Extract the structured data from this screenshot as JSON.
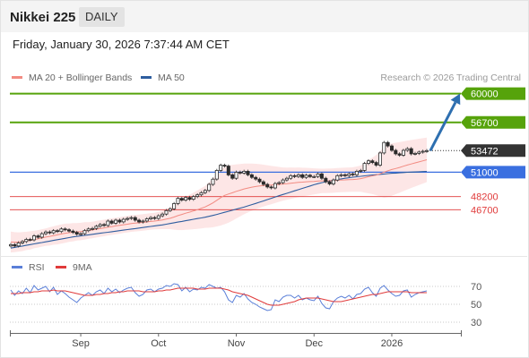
{
  "header": {
    "title": "Nikkei 225",
    "period": "DAILY"
  },
  "timestamp": "Friday, January 30, 2026 7:37:44 AM CET",
  "colors": {
    "ma20": "#f28b82",
    "ma50": "#2e5d9f",
    "band_fill": "#fde6e6",
    "target_green": "#56a30b",
    "pivot_blue": "#3a6fe0",
    "support_red": "#e03a3a",
    "price_tag": "#333333",
    "rsi": "#5a7fd8",
    "rsi_ma": "#e03a3a",
    "arrow": "#2e6fb0"
  },
  "chart_data": [
    {
      "type": "candlestick",
      "legend": [
        {
          "label": "MA 20 + Bollinger Bands",
          "color": "#f28b82"
        },
        {
          "label": "MA 50",
          "color": "#2e5d9f"
        }
      ],
      "watermark": "Research © 2026 Trading Central",
      "ylim": [
        41500,
        61500
      ],
      "x_ticks": [
        {
          "label": "Sep",
          "index": 18
        },
        {
          "label": "Oct",
          "index": 38
        },
        {
          "label": "Nov",
          "index": 58
        },
        {
          "label": "Dec",
          "index": 78
        },
        {
          "label": "2026",
          "index": 98
        }
      ],
      "levels": [
        {
          "value": 60000,
          "label": "60000",
          "kind": "target"
        },
        {
          "value": 56700,
          "label": "56700",
          "kind": "target"
        },
        {
          "value": 53472,
          "label": "53472",
          "kind": "last"
        },
        {
          "value": 51000,
          "label": "51000",
          "kind": "pivot"
        },
        {
          "value": 48200,
          "label": "48200",
          "kind": "support"
        },
        {
          "value": 46700,
          "label": "46700",
          "kind": "support"
        }
      ],
      "closes": [
        42700,
        42550,
        42900,
        43050,
        43300,
        43250,
        43700,
        43550,
        43950,
        44150,
        44050,
        44300,
        44200,
        44500,
        44400,
        44250,
        44100,
        43900,
        43950,
        44300,
        44500,
        44550,
        44800,
        45000,
        44900,
        45400,
        45150,
        45500,
        45300,
        45600,
        45700,
        45800,
        45500,
        45300,
        45400,
        45650,
        45800,
        45700,
        46000,
        46200,
        46600,
        46800,
        47400,
        48000,
        47800,
        48100,
        47900,
        48200,
        48400,
        48650,
        48900,
        49600,
        50200,
        51200,
        51800,
        51700,
        50700,
        50300,
        51000,
        50900,
        51100,
        50700,
        50400,
        50200,
        49900,
        49600,
        49300,
        49200,
        49700,
        49800,
        50100,
        50300,
        50600,
        50500,
        50700,
        50400,
        50650,
        50500,
        50500,
        50800,
        50300,
        49900,
        49650,
        50100,
        50600,
        50700,
        50600,
        50800,
        50700,
        51100,
        51200,
        52000,
        52300,
        52100,
        51800,
        53200,
        54400,
        54000,
        53500,
        53100,
        52950,
        53500,
        53700,
        53100,
        53150,
        53300,
        53400,
        53472
      ],
      "ma20": [
        43000,
        42980,
        43000,
        43050,
        43120,
        43180,
        43280,
        43360,
        43460,
        43560,
        43640,
        43740,
        43820,
        43920,
        44000,
        44060,
        44120,
        44160,
        44200,
        44260,
        44320,
        44380,
        44460,
        44540,
        44600,
        44700,
        44760,
        44840,
        44900,
        44980,
        45040,
        45120,
        45160,
        45200,
        45240,
        45300,
        45360,
        45400,
        45460,
        45520,
        45620,
        45720,
        45860,
        46020,
        46160,
        46300,
        46420,
        46560,
        46700,
        46860,
        47020,
        47240,
        47480,
        47780,
        48080,
        48340,
        48500,
        48640,
        48800,
        48940,
        49080,
        49180,
        49280,
        49360,
        49420,
        49460,
        49500,
        49520,
        49560,
        49600,
        49640,
        49680,
        49740,
        49780,
        49840,
        49860,
        49900,
        49920,
        49940,
        49980,
        50000,
        50010,
        50020,
        50040,
        50080,
        50100,
        50120,
        50140,
        50160,
        50200,
        50260,
        50360,
        50480,
        50580,
        50660,
        50820,
        51000,
        51160,
        51300,
        51420,
        51540,
        51680,
        51820,
        51940,
        52060,
        52180,
        52300,
        52420
      ],
      "ma50": [
        42300,
        42380,
        42460,
        42540,
        42620,
        42700,
        42780,
        42860,
        42940,
        43020,
        43100,
        43180,
        43260,
        43340,
        43420,
        43500,
        43580,
        43640,
        43700,
        43760,
        43820,
        43880,
        43940,
        44000,
        44060,
        44120,
        44180,
        44240,
        44300,
        44360,
        44420,
        44480,
        44540,
        44600,
        44660,
        44720,
        44780,
        44840,
        44900,
        44960,
        45040,
        45120,
        45200,
        45280,
        45360,
        45440,
        45520,
        45600,
        45680,
        45760,
        45840,
        45940,
        46040,
        46160,
        46280,
        46400,
        46520,
        46640,
        46760,
        46880,
        47000,
        47140,
        47280,
        47420,
        47560,
        47700,
        47860,
        48000,
        48160,
        48300,
        48440,
        48580,
        48720,
        48860,
        49000,
        49140,
        49280,
        49420,
        49560,
        49680,
        49800,
        49900,
        50000,
        50080,
        50160,
        50230,
        50300,
        50360,
        50420,
        50480,
        50530,
        50580,
        50630,
        50670,
        50710,
        50750,
        50790,
        50830,
        50870,
        50900,
        50930,
        50960,
        50990,
        51010,
        51030,
        51050,
        51070,
        51090
      ],
      "bb_width": [
        1200,
        1150,
        1100,
        1100,
        1050,
        1050,
        1000,
        1000,
        1000,
        1000,
        1050,
        1050,
        1100,
        1100,
        1100,
        1050,
        1050,
        1000,
        1000,
        1000,
        950,
        950,
        950,
        950,
        950,
        950,
        950,
        950,
        950,
        950,
        950,
        950,
        950,
        950,
        950,
        950,
        950,
        950,
        1000,
        1050,
        1150,
        1250,
        1450,
        1650,
        1800,
        1900,
        2000,
        2100,
        2200,
        2300,
        2400,
        2600,
        2800,
        3000,
        3200,
        3300,
        3300,
        3200,
        3100,
        3000,
        2900,
        2800,
        2700,
        2600,
        2500,
        2400,
        2300,
        2200,
        2100,
        2000,
        1900,
        1850,
        1800,
        1750,
        1700,
        1650,
        1600,
        1550,
        1500,
        1450,
        1400,
        1400,
        1400,
        1400,
        1400,
        1400,
        1400,
        1400,
        1400,
        1450,
        1500,
        1700,
        1900,
        2100,
        2300,
        2600,
        2900,
        3000,
        3000,
        2950,
        2900,
        2850,
        2800,
        2750,
        2700,
        2650,
        2600,
        2550
      ]
    },
    {
      "type": "line",
      "legend": [
        {
          "label": "RSI",
          "color": "#5a7fd8"
        },
        {
          "label": "9MA",
          "color": "#e03a3a"
        }
      ],
      "ylim": [
        20,
        80
      ],
      "y_ticks": [
        70,
        50,
        30
      ],
      "rsi": [
        66,
        60,
        65,
        62,
        68,
        63,
        71,
        66,
        68,
        70,
        64,
        69,
        61,
        65,
        62,
        58,
        55,
        52,
        57,
        60,
        63,
        60,
        64,
        66,
        62,
        68,
        64,
        67,
        63,
        66,
        68,
        69,
        63,
        59,
        61,
        66,
        67,
        64,
        67,
        68,
        71,
        70,
        73,
        72,
        65,
        69,
        64,
        67,
        66,
        69,
        68,
        72,
        70,
        68,
        69,
        64,
        55,
        52,
        60,
        58,
        62,
        56,
        52,
        50,
        47,
        45,
        43,
        44,
        55,
        53,
        58,
        60,
        60,
        57,
        60,
        55,
        57,
        55,
        54,
        59,
        51,
        46,
        45,
        53,
        57,
        59,
        57,
        60,
        56,
        61,
        62,
        67,
        69,
        63,
        59,
        68,
        71,
        66,
        62,
        59,
        60,
        65,
        66,
        58,
        61,
        63,
        64,
        65
      ],
      "rsi_ma": [
        62,
        62,
        62,
        63,
        63,
        63,
        64,
        64,
        65,
        65,
        65,
        66,
        65,
        65,
        65,
        64,
        63,
        62,
        61,
        60,
        60,
        60,
        61,
        61,
        62,
        62,
        63,
        63,
        64,
        64,
        65,
        65,
        65,
        65,
        64,
        64,
        64,
        64,
        65,
        65,
        66,
        66,
        67,
        68,
        68,
        68,
        68,
        68,
        67,
        67,
        67,
        68,
        68,
        68,
        68,
        67,
        66,
        64,
        63,
        62,
        61,
        60,
        58,
        56,
        54,
        52,
        50,
        49,
        49,
        49,
        50,
        51,
        52,
        53,
        55,
        56,
        57,
        57,
        57,
        57,
        56,
        55,
        54,
        53,
        53,
        53,
        54,
        55,
        56,
        57,
        58,
        59,
        60,
        61,
        61,
        62,
        63,
        64,
        64,
        64,
        64,
        64,
        64,
        63,
        63,
        63,
        63,
        63
      ]
    }
  ]
}
